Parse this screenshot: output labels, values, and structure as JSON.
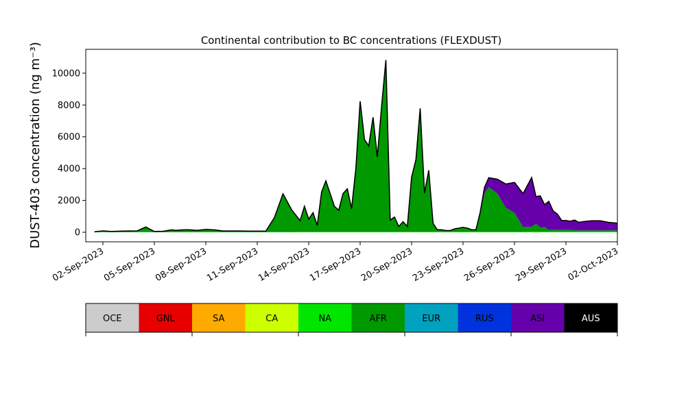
{
  "chart_data": {
    "type": "area",
    "title": "Continental contribution to BC concentrations (FLEXDUST)",
    "xlabel": "",
    "ylabel": "DUST-403 concentration (ng m⁻³)",
    "xlim": [
      "2023-09-01",
      "2023-10-02"
    ],
    "ylim": [
      -600,
      11500
    ],
    "y_ticks": [
      0,
      2000,
      4000,
      6000,
      8000,
      10000
    ],
    "x_ticks": [
      "2023-09-02",
      "2023-09-05",
      "2023-09-08",
      "2023-09-11",
      "2023-09-14",
      "2023-09-17",
      "2023-09-20",
      "2023-09-23",
      "2023-09-26",
      "2023-09-29",
      "2023-10-02"
    ],
    "x_tick_labels": [
      "02-Sep-2023",
      "05-Sep-2023",
      "08-Sep-2023",
      "11-Sep-2023",
      "14-Sep-2023",
      "17-Sep-2023",
      "20-Sep-2023",
      "23-Sep-2023",
      "26-Sep-2023",
      "29-Sep-2023",
      "02-Oct-2023"
    ],
    "x": [
      "2023-09-01 12:00",
      "2023-09-02 00:00",
      "2023-09-02 12:00",
      "2023-09-03 00:00",
      "2023-09-03 12:00",
      "2023-09-04 00:00",
      "2023-09-04 12:00",
      "2023-09-05 00:00",
      "2023-09-05 12:00",
      "2023-09-06 00:00",
      "2023-09-06 06:00",
      "2023-09-06 12:00",
      "2023-09-06 18:00",
      "2023-09-07 00:00",
      "2023-09-07 12:00",
      "2023-09-08 00:00",
      "2023-09-08 12:00",
      "2023-09-09 00:00",
      "2023-09-09 12:00",
      "2023-09-10 00:00",
      "2023-09-10 12:00",
      "2023-09-11 00:00",
      "2023-09-11 12:00",
      "2023-09-12 00:00",
      "2023-09-12 12:00",
      "2023-09-13 00:00",
      "2023-09-13 12:00",
      "2023-09-13 18:00",
      "2023-09-14 00:00",
      "2023-09-14 06:00",
      "2023-09-14 12:00",
      "2023-09-14 18:00",
      "2023-09-15 00:00",
      "2023-09-15 06:00",
      "2023-09-15 12:00",
      "2023-09-15 18:00",
      "2023-09-16 00:00",
      "2023-09-16 06:00",
      "2023-09-16 12:00",
      "2023-09-16 18:00",
      "2023-09-17 00:00",
      "2023-09-17 06:00",
      "2023-09-17 12:00",
      "2023-09-17 18:00",
      "2023-09-18 00:00",
      "2023-09-18 06:00",
      "2023-09-18 12:00",
      "2023-09-18 18:00",
      "2023-09-19 00:00",
      "2023-09-19 06:00",
      "2023-09-19 12:00",
      "2023-09-19 18:00",
      "2023-09-20 00:00",
      "2023-09-20 06:00",
      "2023-09-20 12:00",
      "2023-09-20 18:00",
      "2023-09-21 00:00",
      "2023-09-21 06:00",
      "2023-09-21 12:00",
      "2023-09-21 18:00",
      "2023-09-22 00:00",
      "2023-09-22 06:00",
      "2023-09-22 12:00",
      "2023-09-22 18:00",
      "2023-09-23 00:00",
      "2023-09-23 06:00",
      "2023-09-23 12:00",
      "2023-09-23 18:00",
      "2023-09-24 00:00",
      "2023-09-24 06:00",
      "2023-09-24 12:00",
      "2023-09-25 00:00",
      "2023-09-25 12:00",
      "2023-09-26 00:00",
      "2023-09-26 12:00",
      "2023-09-27 00:00",
      "2023-09-27 06:00",
      "2023-09-27 12:00",
      "2023-09-27 18:00",
      "2023-09-28 00:00",
      "2023-09-28 06:00",
      "2023-09-28 12:00",
      "2023-09-28 18:00",
      "2023-09-29 00:00",
      "2023-09-29 06:00",
      "2023-09-29 12:00",
      "2023-09-29 18:00",
      "2023-09-30 00:00",
      "2023-09-30 12:00",
      "2023-10-01 00:00",
      "2023-10-01 12:00",
      "2023-10-02 00:00"
    ],
    "series": [
      {
        "name": "OCE",
        "color": "#cccccc",
        "values": [
          0,
          0,
          0,
          0,
          0,
          0,
          0,
          0,
          0,
          0,
          0,
          0,
          0,
          0,
          0,
          0,
          0,
          0,
          0,
          0,
          0,
          0,
          0,
          0,
          0,
          0,
          0,
          0,
          0,
          0,
          0,
          0,
          0,
          0,
          0,
          0,
          0,
          0,
          0,
          0,
          0,
          0,
          0,
          0,
          0,
          0,
          0,
          0,
          0,
          0,
          0,
          0,
          0,
          0,
          0,
          0,
          0,
          0,
          0,
          0,
          0,
          0,
          0,
          0,
          0,
          0,
          0,
          0,
          0,
          0,
          0,
          0,
          0,
          0,
          0,
          0,
          0,
          0,
          0,
          0,
          0,
          0,
          0,
          0,
          0,
          0,
          0,
          0,
          0,
          0,
          0,
          0
        ]
      },
      {
        "name": "GNL",
        "color": "#e60000",
        "values": [
          0,
          0,
          0,
          0,
          0,
          0,
          0,
          0,
          0,
          0,
          0,
          0,
          0,
          0,
          0,
          0,
          0,
          0,
          0,
          0,
          0,
          0,
          0,
          0,
          0,
          0,
          0,
          0,
          0,
          0,
          0,
          0,
          0,
          0,
          0,
          0,
          0,
          0,
          0,
          0,
          0,
          0,
          0,
          0,
          0,
          0,
          0,
          0,
          0,
          0,
          0,
          0,
          0,
          0,
          0,
          0,
          0,
          0,
          0,
          0,
          0,
          0,
          0,
          0,
          0,
          0,
          0,
          0,
          0,
          0,
          0,
          0,
          0,
          0,
          0,
          0,
          0,
          0,
          0,
          0,
          0,
          0,
          0,
          0,
          0,
          0,
          0,
          0,
          0,
          0,
          0,
          0
        ]
      },
      {
        "name": "SA",
        "color": "#ffaa00",
        "values": [
          0,
          0,
          0,
          0,
          0,
          0,
          0,
          0,
          0,
          0,
          0,
          0,
          0,
          0,
          0,
          0,
          0,
          0,
          0,
          0,
          0,
          0,
          0,
          0,
          0,
          0,
          0,
          0,
          0,
          0,
          0,
          0,
          0,
          0,
          0,
          0,
          0,
          0,
          0,
          0,
          0,
          0,
          0,
          0,
          0,
          0,
          0,
          0,
          0,
          0,
          0,
          0,
          0,
          0,
          0,
          0,
          0,
          0,
          0,
          0,
          0,
          0,
          0,
          0,
          0,
          0,
          0,
          0,
          0,
          0,
          0,
          0,
          0,
          0,
          0,
          0,
          0,
          0,
          0,
          0,
          0,
          0,
          0,
          0,
          0,
          0,
          0,
          0,
          0,
          0,
          0,
          0
        ]
      },
      {
        "name": "CA",
        "color": "#ccff00",
        "values": [
          0,
          0,
          0,
          0,
          0,
          0,
          0,
          0,
          0,
          0,
          0,
          0,
          0,
          0,
          0,
          0,
          0,
          0,
          0,
          0,
          0,
          0,
          0,
          0,
          0,
          0,
          0,
          0,
          0,
          0,
          0,
          0,
          0,
          0,
          0,
          0,
          0,
          0,
          0,
          0,
          0,
          0,
          0,
          0,
          0,
          0,
          0,
          0,
          0,
          0,
          0,
          0,
          0,
          0,
          0,
          0,
          0,
          0,
          0,
          0,
          0,
          0,
          0,
          0,
          0,
          0,
          0,
          0,
          0,
          0,
          0,
          0,
          0,
          0,
          0,
          0,
          0,
          0,
          0,
          0,
          0,
          0,
          0,
          0,
          0,
          0,
          0,
          0,
          0,
          0,
          0,
          0
        ]
      },
      {
        "name": "NA",
        "color": "#00e600",
        "values": [
          20,
          30,
          20,
          20,
          20,
          20,
          30,
          20,
          20,
          20,
          20,
          20,
          20,
          20,
          20,
          20,
          20,
          20,
          20,
          20,
          20,
          20,
          20,
          20,
          20,
          20,
          30,
          30,
          30,
          30,
          30,
          30,
          30,
          30,
          30,
          30,
          30,
          30,
          30,
          30,
          30,
          30,
          30,
          30,
          30,
          30,
          30,
          30,
          30,
          30,
          30,
          30,
          30,
          30,
          30,
          30,
          30,
          30,
          30,
          30,
          30,
          30,
          30,
          30,
          30,
          30,
          30,
          30,
          30,
          30,
          30,
          30,
          30,
          30,
          30,
          40,
          40,
          40,
          40,
          40,
          40,
          40,
          40,
          40,
          40,
          40,
          40,
          40,
          40,
          40,
          40,
          40
        ]
      },
      {
        "name": "AFR",
        "color": "#009900",
        "values": [
          10,
          60,
          30,
          50,
          60,
          70,
          300,
          30,
          40,
          130,
          100,
          120,
          140,
          140,
          100,
          160,
          130,
          60,
          60,
          60,
          50,
          50,
          50,
          900,
          2400,
          1400,
          700,
          1600,
          800,
          1200,
          400,
          2500,
          3200,
          2400,
          1600,
          1350,
          2400,
          2700,
          1450,
          4000,
          8200,
          5800,
          5400,
          7200,
          4700,
          7900,
          10600,
          700,
          900,
          300,
          600,
          300,
          3400,
          4500,
          7700,
          2400,
          3800,
          500,
          100,
          100,
          50,
          50,
          150,
          200,
          250,
          200,
          100,
          100,
          1100,
          2400,
          2800,
          2400,
          1500,
          1200,
          300,
          300,
          500,
          250,
          300,
          100,
          100,
          100,
          100,
          100,
          100,
          80,
          80,
          80,
          80,
          80,
          80,
          80
        ]
      },
      {
        "name": "EUR",
        "color": "#00a2bf",
        "values": [
          0,
          0,
          0,
          0,
          0,
          0,
          0,
          0,
          0,
          0,
          0,
          0,
          0,
          0,
          0,
          0,
          0,
          0,
          0,
          0,
          0,
          0,
          0,
          0,
          0,
          0,
          0,
          0,
          0,
          0,
          0,
          0,
          0,
          0,
          0,
          0,
          0,
          0,
          0,
          0,
          0,
          0,
          0,
          0,
          0,
          0,
          0,
          0,
          0,
          0,
          0,
          0,
          0,
          0,
          0,
          0,
          0,
          0,
          0,
          0,
          0,
          0,
          0,
          0,
          0,
          0,
          0,
          0,
          0,
          0,
          0,
          0,
          0,
          0,
          0,
          0,
          0,
          0,
          0,
          0,
          0,
          0,
          0,
          0,
          0,
          0,
          0,
          0,
          0,
          0,
          0,
          0
        ]
      },
      {
        "name": "RUS",
        "color": "#0033dd",
        "values": [
          0,
          0,
          0,
          0,
          0,
          0,
          0,
          0,
          0,
          0,
          0,
          0,
          0,
          0,
          0,
          0,
          0,
          0,
          0,
          0,
          0,
          0,
          0,
          0,
          0,
          0,
          0,
          0,
          0,
          0,
          0,
          0,
          0,
          0,
          0,
          0,
          0,
          0,
          0,
          0,
          0,
          0,
          0,
          0,
          0,
          0,
          0,
          0,
          0,
          0,
          0,
          0,
          0,
          0,
          0,
          0,
          0,
          0,
          0,
          0,
          0,
          0,
          0,
          0,
          0,
          0,
          0,
          0,
          0,
          0,
          0,
          0,
          0,
          0,
          0,
          0,
          0,
          0,
          0,
          0,
          0,
          0,
          0,
          0,
          0,
          0,
          0,
          0,
          0,
          0,
          0,
          0
        ]
      },
      {
        "name": "ASI",
        "color": "#6600aa",
        "values": [
          0,
          0,
          0,
          0,
          0,
          0,
          0,
          0,
          0,
          0,
          0,
          0,
          0,
          0,
          0,
          0,
          0,
          0,
          0,
          0,
          0,
          0,
          0,
          0,
          0,
          0,
          0,
          0,
          0,
          0,
          0,
          0,
          0,
          0,
          0,
          0,
          0,
          0,
          0,
          0,
          0,
          0,
          0,
          0,
          0,
          0,
          200,
          30,
          30,
          30,
          30,
          30,
          30,
          30,
          60,
          30,
          60,
          30,
          30,
          30,
          30,
          30,
          30,
          30,
          30,
          30,
          30,
          30,
          120,
          400,
          600,
          900,
          1500,
          1900,
          2100,
          3100,
          1700,
          2000,
          1400,
          1800,
          1200,
          1000,
          600,
          600,
          550,
          650,
          500,
          550,
          600,
          600,
          500,
          450
        ]
      },
      {
        "name": "AUS",
        "color": "#000000",
        "values": [
          0,
          0,
          0,
          0,
          0,
          0,
          0,
          0,
          0,
          0,
          0,
          0,
          0,
          0,
          0,
          0,
          0,
          0,
          0,
          0,
          0,
          0,
          0,
          0,
          0,
          0,
          0,
          0,
          0,
          0,
          0,
          0,
          0,
          0,
          0,
          0,
          0,
          0,
          0,
          0,
          0,
          0,
          0,
          0,
          0,
          0,
          0,
          0,
          0,
          0,
          0,
          0,
          0,
          0,
          0,
          0,
          0,
          0,
          0,
          0,
          0,
          0,
          0,
          0,
          0,
          0,
          0,
          0,
          0,
          0,
          0,
          0,
          0,
          0,
          0,
          0,
          0,
          0,
          0,
          0,
          0,
          0,
          0,
          0,
          0,
          0,
          0,
          0,
          0,
          0,
          0,
          0
        ]
      }
    ]
  }
}
